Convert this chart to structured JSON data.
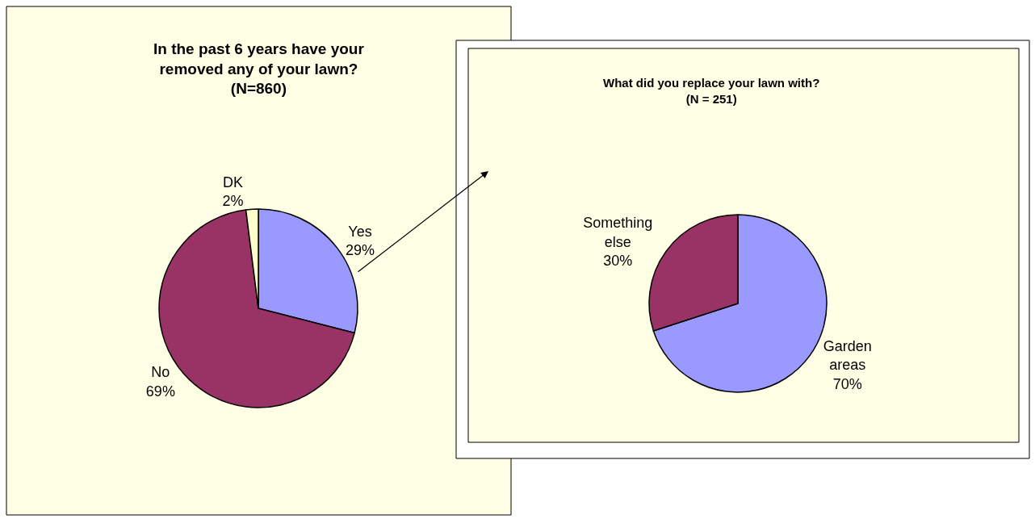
{
  "chart_data": [
    {
      "type": "pie",
      "title": "In the past 6 years have your removed any of your lawn? (N=860)",
      "categories": [
        "Yes",
        "No",
        "DK"
      ],
      "values": [
        29,
        69,
        2
      ],
      "value_labels": [
        "29%",
        "69%",
        "2%"
      ],
      "colors": [
        "#9999ff",
        "#993366",
        "#ffffcc"
      ]
    },
    {
      "type": "pie",
      "title": "What did you replace your lawn with? (N = 251)",
      "categories": [
        "Garden areas",
        "Something else"
      ],
      "values": [
        70,
        30
      ],
      "value_labels": [
        "70%",
        "30%"
      ],
      "colors": [
        "#9999ff",
        "#993366"
      ]
    }
  ]
}
